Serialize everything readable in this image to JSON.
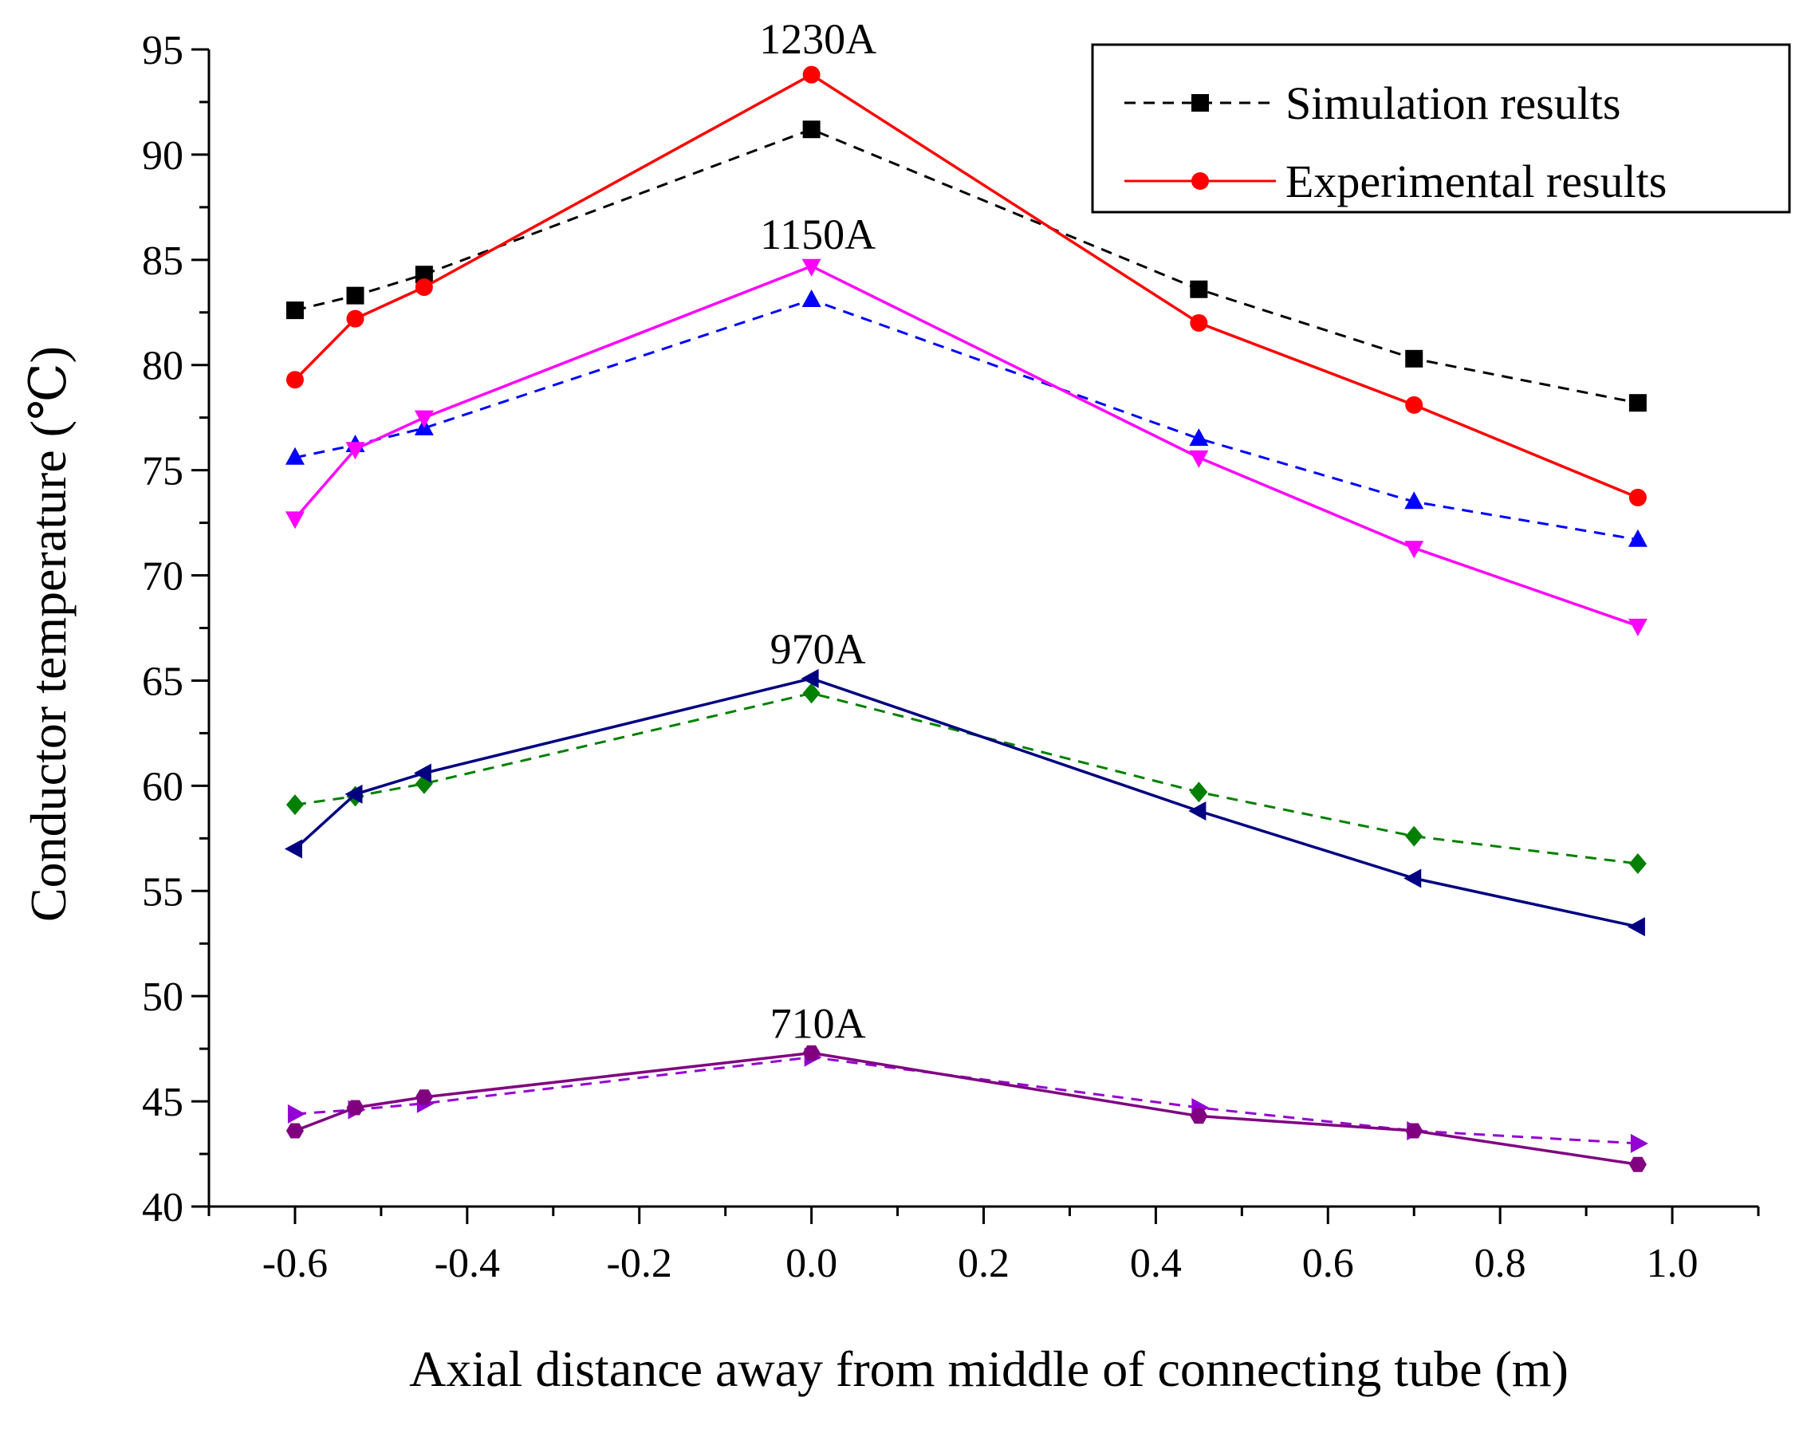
{
  "chart_data": {
    "type": "line",
    "xlabel": "Axial distance away from middle of connecting tube (m)",
    "ylabel": "Conductor temperature (℃)",
    "xlim": [
      -0.7,
      1.1
    ],
    "ylim": [
      40,
      95
    ],
    "xticks": [
      "-0.6",
      "-0.4",
      "-0.2",
      "0.0",
      "0.2",
      "0.4",
      "0.6",
      "0.8",
      "1.0"
    ],
    "yticks": [
      "40",
      "45",
      "50",
      "55",
      "60",
      "65",
      "70",
      "75",
      "80",
      "85",
      "90",
      "95"
    ],
    "grid": false,
    "legend": {
      "position": "top-right",
      "entries": [
        {
          "label": "Simulation results",
          "color": "#000000",
          "dash": true,
          "marker": "square"
        },
        {
          "label": "Experimental results",
          "color": "#ff0000",
          "dash": false,
          "marker": "circle"
        }
      ]
    },
    "annotations": [
      {
        "text": "1230A",
        "x": 0.0,
        "y": 95.5
      },
      {
        "text": "1150A",
        "x": 0.0,
        "y": 86.2
      },
      {
        "text": "970A",
        "x": 0.0,
        "y": 66.5
      },
      {
        "text": "710A",
        "x": 0.0,
        "y": 48.7
      }
    ],
    "x": [
      -0.6,
      -0.53,
      -0.45,
      0.0,
      0.45,
      0.7,
      0.96
    ],
    "series": [
      {
        "color": "#000000",
        "dash": true,
        "marker": "square",
        "values": [
          82.6,
          83.3,
          84.3,
          91.2,
          83.6,
          80.3,
          78.2
        ]
      },
      {
        "color": "#ff0000",
        "dash": false,
        "marker": "circle",
        "values": [
          79.3,
          82.2,
          83.7,
          93.8,
          82.0,
          78.1,
          73.7
        ]
      },
      {
        "color": "#0000ff",
        "dash": true,
        "marker": "triangle-up",
        "values": [
          75.6,
          76.2,
          77.0,
          83.1,
          76.5,
          73.5,
          71.7
        ]
      },
      {
        "color": "#ff00ff",
        "dash": false,
        "marker": "triangle-down",
        "values": [
          72.7,
          76.0,
          77.5,
          84.7,
          75.6,
          71.3,
          67.6
        ]
      },
      {
        "color": "#008000",
        "dash": true,
        "marker": "diamond",
        "values": [
          59.1,
          59.5,
          60.1,
          64.4,
          59.7,
          57.6,
          56.3
        ]
      },
      {
        "color": "#000080",
        "dash": false,
        "marker": "triangle-left",
        "values": [
          57.0,
          59.6,
          60.6,
          65.1,
          58.8,
          55.6,
          53.3
        ]
      },
      {
        "color": "#9400d3",
        "dash": true,
        "marker": "triangle-right",
        "values": [
          44.4,
          44.6,
          44.9,
          47.1,
          44.7,
          43.6,
          43.0
        ]
      },
      {
        "color": "#800080",
        "dash": false,
        "marker": "hexagon",
        "values": [
          43.6,
          44.7,
          45.2,
          47.3,
          44.3,
          43.6,
          42.0
        ]
      }
    ]
  }
}
